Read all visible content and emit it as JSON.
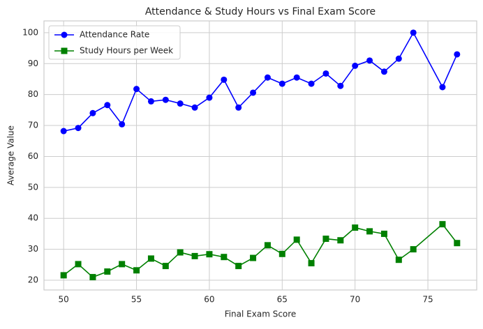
{
  "chart_data": {
    "type": "line",
    "title": "Attendance & Study Hours vs Final Exam Score",
    "x_label": "Final Exam Score",
    "y_label": "Average Value",
    "x": [
      50,
      51,
      52,
      53,
      54,
      55,
      56,
      57,
      58,
      59,
      60,
      61,
      62,
      63,
      64,
      65,
      66,
      67,
      68,
      69,
      70,
      71,
      72,
      73,
      74,
      76,
      77
    ],
    "series": [
      {
        "name": "Attendance Rate",
        "color": "#0000ff",
        "marker": "circle",
        "values": [
          68.2,
          69.2,
          74.0,
          76.6,
          70.4,
          81.8,
          77.8,
          78.3,
          77.1,
          75.8,
          79.0,
          84.8,
          75.8,
          80.6,
          85.5,
          83.5,
          85.5,
          83.5,
          86.8,
          82.8,
          89.3,
          91.0,
          87.4,
          91.6,
          100.0,
          82.4,
          93.0
        ]
      },
      {
        "name": "Study Hours per Week",
        "color": "#008000",
        "marker": "square",
        "values": [
          21.6,
          25.2,
          21.0,
          22.8,
          25.2,
          23.2,
          27.0,
          24.6,
          29.0,
          27.8,
          28.4,
          27.5,
          24.6,
          27.2,
          31.3,
          28.5,
          33.1,
          25.5,
          33.4,
          32.9,
          37.0,
          35.8,
          35.0,
          26.6,
          30.0,
          38.1,
          32.0
        ]
      }
    ],
    "xlim": [
      48.65,
      78.35
    ],
    "xticks": [
      50,
      55,
      60,
      65,
      70,
      75
    ],
    "ylim": [
      16.85,
      103.8
    ],
    "yticks": [
      20,
      30,
      40,
      50,
      60,
      70,
      80,
      90,
      100
    ],
    "grid": true,
    "legend": "upper-left"
  }
}
